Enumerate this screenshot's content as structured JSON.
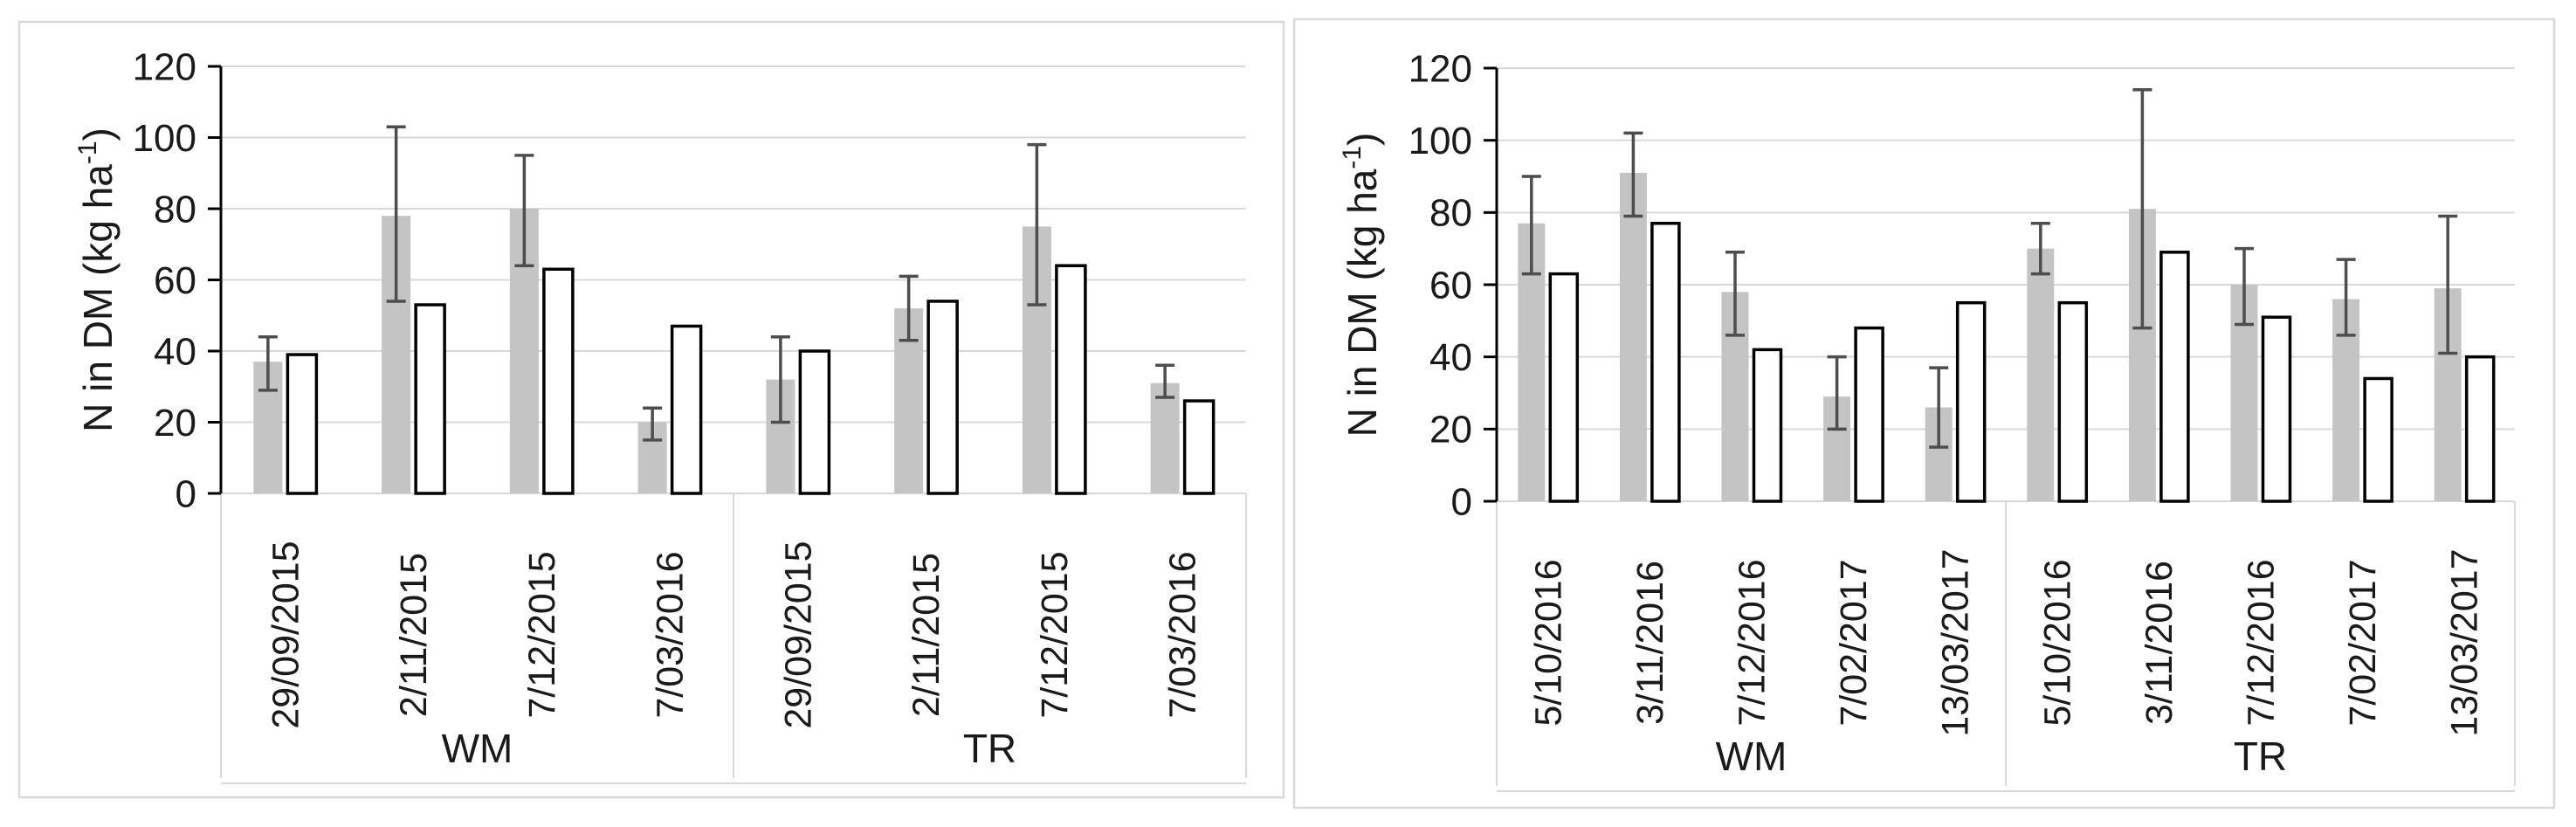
{
  "figure": {
    "background": "#ffffff",
    "colors": {
      "gray_bar": "#c4c4c4",
      "white_bar_fill": "#ffffff",
      "white_bar_border": "#000000",
      "error_bar": "#4d4d4d",
      "gridline": "#d9d9d9",
      "axis": "#000000",
      "panel_border": "#d9d9d9",
      "text": "#1a1a1a"
    }
  },
  "chart_data": [
    {
      "id": "left-chart",
      "type": "bar",
      "title": "",
      "xlabel": "",
      "ylabel": "N in DM (kg ha⁻¹)",
      "ylabel_sup": "-1",
      "ylim": [
        0,
        120
      ],
      "yticks": [
        0,
        20,
        40,
        60,
        80,
        100,
        120
      ],
      "grid": true,
      "legend": "none",
      "group_labels": [
        "WM",
        "TR"
      ],
      "categories": [
        {
          "label": "29/09/2015",
          "section": "WM"
        },
        {
          "label": "2/11/2015",
          "section": "WM"
        },
        {
          "label": "7/12/2015",
          "section": "WM"
        },
        {
          "label": "7/03/2016",
          "section": "WM"
        },
        {
          "label": "29/09/2015",
          "section": "TR"
        },
        {
          "label": "2/11/2015",
          "section": "TR"
        },
        {
          "label": "7/12/2015",
          "section": "TR"
        },
        {
          "label": "7/03/2016",
          "section": "TR"
        }
      ],
      "series": [
        {
          "name": "gray",
          "values": [
            37,
            78,
            80,
            20,
            32,
            52,
            75,
            31
          ],
          "error_low": [
            29,
            54,
            64,
            15,
            20,
            43,
            53,
            27
          ],
          "error_high": [
            44,
            103,
            95,
            24,
            44,
            61,
            98,
            36
          ]
        },
        {
          "name": "white",
          "values": [
            39,
            53,
            63,
            47,
            40,
            54,
            64,
            26
          ],
          "error_low": null,
          "error_high": null
        }
      ]
    },
    {
      "id": "right-chart",
      "type": "bar",
      "title": "",
      "xlabel": "",
      "ylabel": "N in DM (kg ha⁻¹)",
      "ylabel_sup": "-1",
      "ylim": [
        0,
        120
      ],
      "yticks": [
        0,
        20,
        40,
        60,
        80,
        100,
        120
      ],
      "grid": true,
      "legend": "none",
      "group_labels": [
        "WM",
        "TR"
      ],
      "categories": [
        {
          "label": "5/10/2016",
          "section": "WM"
        },
        {
          "label": "3/11/2016",
          "section": "WM"
        },
        {
          "label": "7/12/2016",
          "section": "WM"
        },
        {
          "label": "7/02/2017",
          "section": "WM"
        },
        {
          "label": "13/03/2017",
          "section": "WM"
        },
        {
          "label": "5/10/2016",
          "section": "TR"
        },
        {
          "label": "3/11/2016",
          "section": "TR"
        },
        {
          "label": "7/12/2016",
          "section": "TR"
        },
        {
          "label": "7/02/2017",
          "section": "TR"
        },
        {
          "label": "13/03/2017",
          "section": "TR"
        }
      ],
      "series": [
        {
          "name": "gray",
          "values": [
            77,
            91,
            58,
            29,
            26,
            70,
            81,
            60,
            56,
            59
          ],
          "error_low": [
            63,
            79,
            46,
            20,
            15,
            63,
            48,
            49,
            46,
            41
          ],
          "error_high": [
            90,
            102,
            69,
            40,
            37,
            77,
            114,
            70,
            67,
            79
          ]
        },
        {
          "name": "white",
          "values": [
            63,
            77,
            42,
            48,
            55,
            55,
            69,
            51,
            34,
            40
          ],
          "error_low": null,
          "error_high": null
        }
      ]
    }
  ]
}
